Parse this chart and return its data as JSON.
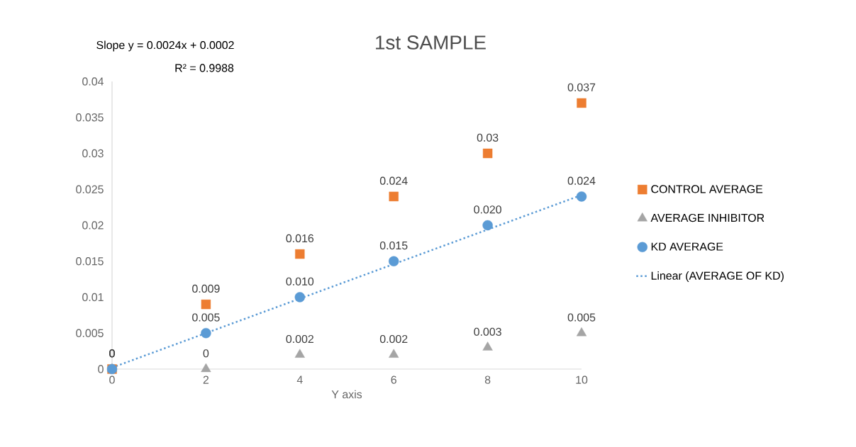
{
  "chart_data": {
    "type": "scatter",
    "title": "1st SAMPLE",
    "xlabel": "Y axis",
    "annotations": [
      "Slope y = 0.0024x + 0.0002",
      "R² = 0.9988"
    ],
    "x": [
      0,
      2,
      4,
      6,
      8,
      10
    ],
    "xlim": [
      0,
      10
    ],
    "xticks": [
      0,
      2,
      4,
      6,
      8,
      10
    ],
    "ylim": [
      0,
      0.04
    ],
    "yticks": [
      0,
      0.005,
      0.01,
      0.015,
      0.02,
      0.025,
      0.03,
      0.035,
      0.04
    ],
    "legend": "right",
    "series": [
      {
        "name": "CONTROL AVERAGE",
        "color": "#ed7d31",
        "marker": "square",
        "values": [
          0,
          0.009,
          0.016,
          0.024,
          0.03,
          0.037
        ],
        "value_labels": [
          "0",
          "0.009",
          "0.016",
          "0.024",
          "0.03",
          "0.037"
        ]
      },
      {
        "name": "AVERAGE INHIBITOR",
        "color": "#a5a5a5",
        "marker": "triangle",
        "values": [
          0,
          0,
          0.002,
          0.002,
          0.003,
          0.005
        ],
        "value_labels": [
          "0",
          "0",
          "0.002",
          "0.002",
          "0.003",
          "0.005"
        ]
      },
      {
        "name": "KD AVERAGE",
        "color": "#5b9bd5",
        "marker": "circle",
        "values": [
          0,
          0.005,
          0.01,
          0.015,
          0.02,
          0.024
        ],
        "value_labels": [
          "0",
          "0.005",
          "0.010",
          "0.015",
          "0.020",
          "0.024"
        ]
      },
      {
        "name": "Linear (AVERAGE OF KD)",
        "type": "line",
        "color": "#5b9bd5",
        "marker": "none",
        "line_style": "dotted",
        "x": [
          0,
          10
        ],
        "values": [
          0.0002,
          0.0242
        ]
      }
    ]
  }
}
